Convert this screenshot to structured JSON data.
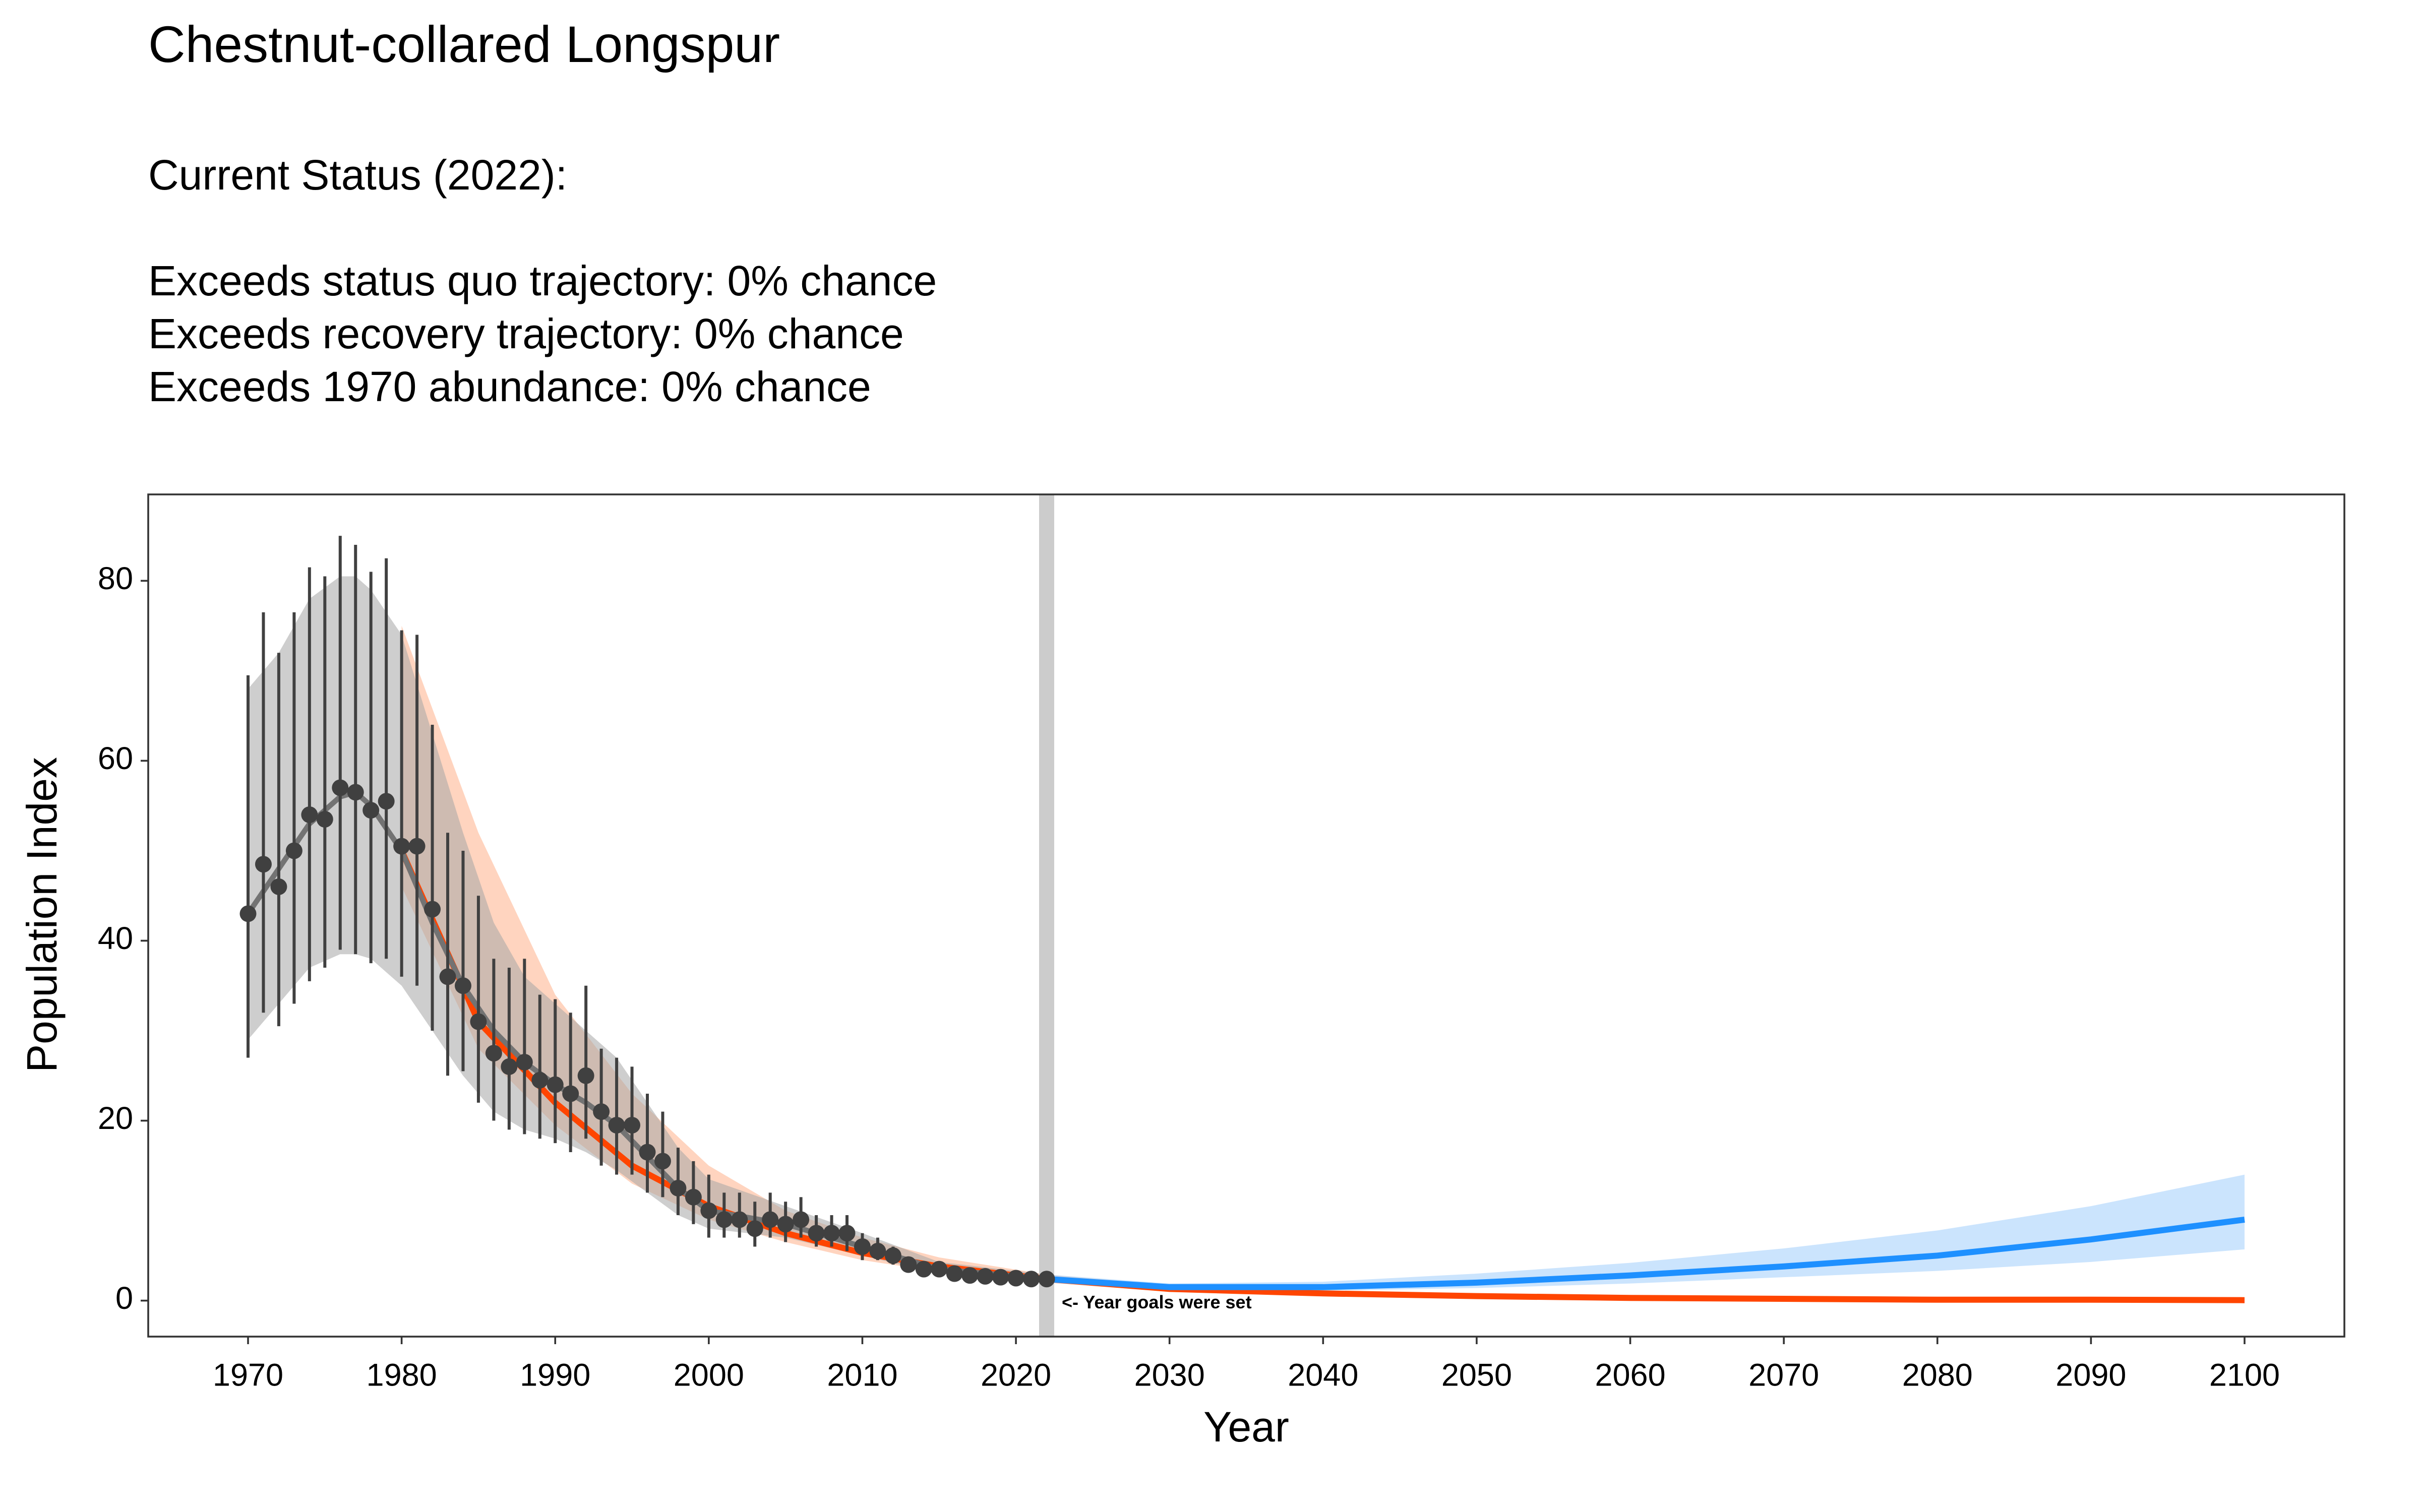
{
  "chart_data": {
    "type": "line",
    "title": "Chestnut-collared Longspur",
    "subtitle_lines": [
      "Current Status (2022):",
      "Exceeds status quo trajectory: 0% chance",
      "Exceeds recovery trajectory: 0% chance",
      "Exceeds 1970 abundance: 0% chance"
    ],
    "x_label": "Year",
    "y_label": "Population Index",
    "xlim": [
      1963.5,
      2106.5
    ],
    "ylim": [
      -4,
      89.6
    ],
    "xticks": [
      1970,
      1980,
      1990,
      2000,
      2010,
      2020,
      2030,
      2040,
      2050,
      2060,
      2070,
      2080,
      2090,
      2100
    ],
    "yticks": [
      0,
      20,
      40,
      60,
      80
    ],
    "grid": false,
    "series": [
      {
        "color": "#ff4500",
        "band_color": "#ffb894",
        "x": [
          1980,
          1985,
          1990,
          1995,
          2000,
          2005,
          2010,
          2015,
          2022,
          2030,
          2040,
          2050,
          2060,
          2070,
          2080,
          2090,
          2100
        ],
        "values": [
          50,
          31,
          22,
          15,
          10.5,
          7.5,
          5.3,
          3.8,
          2.4,
          1.3,
          0.8,
          0.5,
          0.3,
          0.2,
          0.1,
          0.1,
          0.05
        ],
        "lower": [
          46,
          28,
          19.5,
          13,
          9,
          6.5,
          4.5,
          3.2,
          2.0,
          1.0,
          0.5,
          0.3,
          0.2,
          0.1,
          0.05,
          0.03,
          0.02
        ],
        "upper": [
          75,
          52,
          34,
          23,
          15,
          10,
          7,
          4.8,
          2.9,
          1.7,
          1.1,
          0.8,
          0.5,
          0.4,
          0.3,
          0.2,
          0.15
        ]
      },
      {
        "color": "#1e90ff",
        "band_color": "#a9d2fb",
        "x": [
          2022,
          2030,
          2040,
          2050,
          2060,
          2070,
          2080,
          2090,
          2100
        ],
        "values": [
          2.4,
          1.5,
          1.5,
          2,
          2.8,
          3.8,
          5,
          6.8,
          9
        ],
        "lower": [
          2.0,
          1.2,
          1.1,
          1.4,
          1.9,
          2.6,
          3.3,
          4.3,
          5.7
        ],
        "upper": [
          2.9,
          1.9,
          2.1,
          3,
          4.2,
          5.8,
          7.8,
          10.5,
          14
        ]
      }
    ],
    "smooth": {
      "color": "#737373",
      "band_color": "#a6a6a6",
      "x": [
        1970,
        1972,
        1974,
        1976,
        1977,
        1978,
        1980,
        1982,
        1984,
        1986,
        1988,
        1990,
        1992,
        1994,
        1996,
        1998,
        2000,
        2005,
        2010,
        2015,
        2022
      ],
      "values": [
        43,
        48,
        53,
        56,
        56.5,
        55,
        50,
        42,
        35,
        30,
        26.5,
        24,
        22,
        19.5,
        16,
        12.5,
        10,
        8.5,
        6,
        3.5,
        2.4
      ],
      "lower": [
        29,
        33,
        37,
        38.5,
        38.5,
        38,
        35,
        30,
        25,
        21,
        19,
        18,
        16.5,
        14.5,
        12,
        9.5,
        8,
        7,
        5,
        3,
        2
      ],
      "upper": [
        68,
        72,
        78,
        80.5,
        80.5,
        79,
        74,
        63,
        52,
        42,
        36,
        33,
        30,
        27,
        22,
        17,
        13.5,
        10.5,
        7.5,
        4.3,
        2.9
      ]
    },
    "observed": {
      "color": "#404040",
      "x": [
        1970,
        1971,
        1972,
        1973,
        1974,
        1975,
        1976,
        1977,
        1978,
        1979,
        1980,
        1981,
        1982,
        1983,
        1984,
        1985,
        1986,
        1987,
        1988,
        1989,
        1990,
        1991,
        1992,
        1993,
        1994,
        1995,
        1996,
        1997,
        1998,
        1999,
        2000,
        2001,
        2002,
        2003,
        2004,
        2005,
        2006,
        2007,
        2008,
        2009,
        2010,
        2011,
        2012,
        2013,
        2014,
        2015,
        2016,
        2017,
        2018,
        2019,
        2020,
        2021,
        2022
      ],
      "values": [
        43,
        48.5,
        46,
        50,
        54,
        53.5,
        57,
        56.5,
        54.5,
        55.5,
        50.5,
        50.5,
        43.5,
        36,
        35,
        31,
        27.5,
        26,
        26.5,
        24.5,
        24,
        23,
        25,
        21,
        19.5,
        19.5,
        16.5,
        15.5,
        12.5,
        11.5,
        10,
        9,
        9,
        8,
        9,
        8.5,
        9,
        7.5,
        7.5,
        7.5,
        6,
        5.5,
        5,
        4,
        3.5,
        3.5,
        3,
        2.8,
        2.7,
        2.6,
        2.5,
        2.4,
        2.4
      ],
      "lower": [
        27,
        32,
        30.5,
        33,
        35.5,
        37,
        39,
        38.5,
        37.5,
        38,
        36,
        35,
        30,
        25,
        25.5,
        22,
        20,
        19,
        18.5,
        18,
        17.5,
        16.5,
        18,
        15,
        14,
        14,
        12,
        11.5,
        9.5,
        8.5,
        7,
        7,
        7,
        6,
        7,
        6.5,
        7,
        6,
        6,
        5.5,
        4.5,
        4.5,
        4,
        3.3,
        3,
        3,
        2.5,
        2.4,
        2.3,
        2.2,
        2.1,
        2,
        2
      ],
      "upper": [
        69.5,
        76.5,
        72,
        76.5,
        81.5,
        80.5,
        85,
        84,
        81,
        82.5,
        74.5,
        74,
        64,
        52,
        50,
        45,
        38,
        37,
        38,
        34,
        33.5,
        32,
        35,
        28,
        27,
        26,
        23,
        21,
        17,
        15.5,
        14,
        12,
        12,
        11,
        12,
        11,
        11.5,
        9.5,
        9.5,
        9.5,
        7.5,
        7,
        6,
        4.8,
        4.2,
        4.2,
        3.5,
        3.3,
        3.1,
        3,
        2.9,
        2.8,
        2.8
      ]
    },
    "annotation": {
      "x": 2022,
      "text": "<- Year goals were set",
      "color": "#cccccc"
    }
  }
}
